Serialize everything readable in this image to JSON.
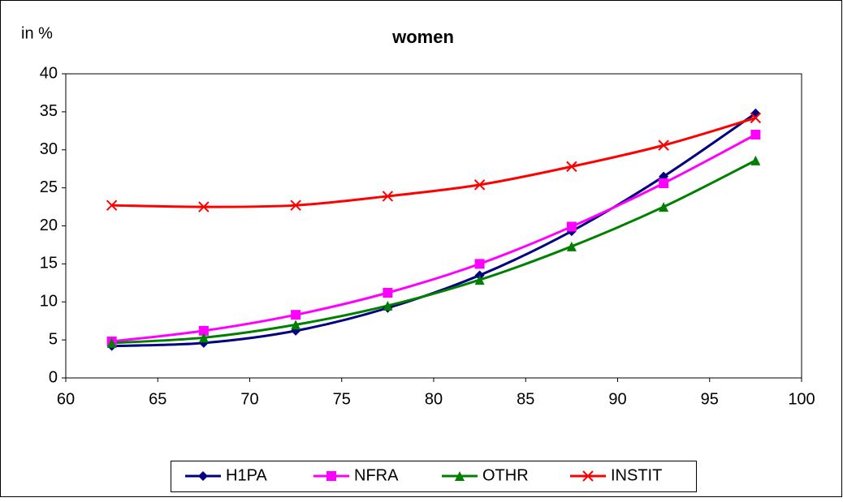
{
  "chart_data": {
    "type": "line",
    "title": "women",
    "ylabel": "in %",
    "x": [
      62.5,
      67.5,
      72.5,
      77.5,
      82.5,
      87.5,
      92.5,
      97.5
    ],
    "series": [
      {
        "name": "H1PA",
        "color": "#000080",
        "marker": "diamond",
        "values": [
          4.2,
          4.6,
          6.2,
          9.2,
          13.5,
          19.3,
          26.5,
          34.8
        ]
      },
      {
        "name": "NFRA",
        "color": "#ff00ff",
        "marker": "square",
        "values": [
          4.8,
          6.2,
          8.3,
          11.2,
          15.0,
          19.9,
          25.6,
          32.0
        ]
      },
      {
        "name": "OTHR",
        "color": "#008000",
        "marker": "triangle",
        "values": [
          4.6,
          5.3,
          7.0,
          9.5,
          12.9,
          17.3,
          22.5,
          28.6
        ]
      },
      {
        "name": "INSTIT",
        "color": "#ff0000",
        "marker": "x",
        "values": [
          22.7,
          22.5,
          22.7,
          23.9,
          25.4,
          27.8,
          30.6,
          34.2
        ]
      }
    ],
    "xlim": [
      60,
      100
    ],
    "xticks": [
      60,
      65,
      70,
      75,
      80,
      85,
      90,
      95,
      100
    ],
    "ylim": [
      0,
      40
    ],
    "yticks": [
      0,
      5,
      10,
      15,
      20,
      25,
      30,
      35,
      40
    ],
    "smooth": true,
    "legend": "bottom"
  }
}
